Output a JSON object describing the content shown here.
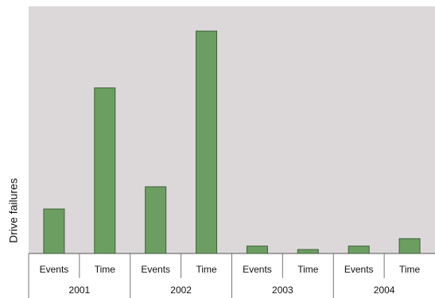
{
  "chart_data": {
    "type": "bar",
    "y_label": "Drive failures",
    "categories": [
      "Events",
      "Time",
      "Events",
      "Time",
      "Events",
      "Time",
      "Events",
      "Time"
    ],
    "groups": [
      "2001",
      "2002",
      "2003",
      "2004"
    ],
    "values": [
      18,
      67,
      27,
      90,
      3,
      1.6,
      3,
      6
    ],
    "color": "#6c9e62",
    "ylim": [
      0,
      100
    ]
  }
}
